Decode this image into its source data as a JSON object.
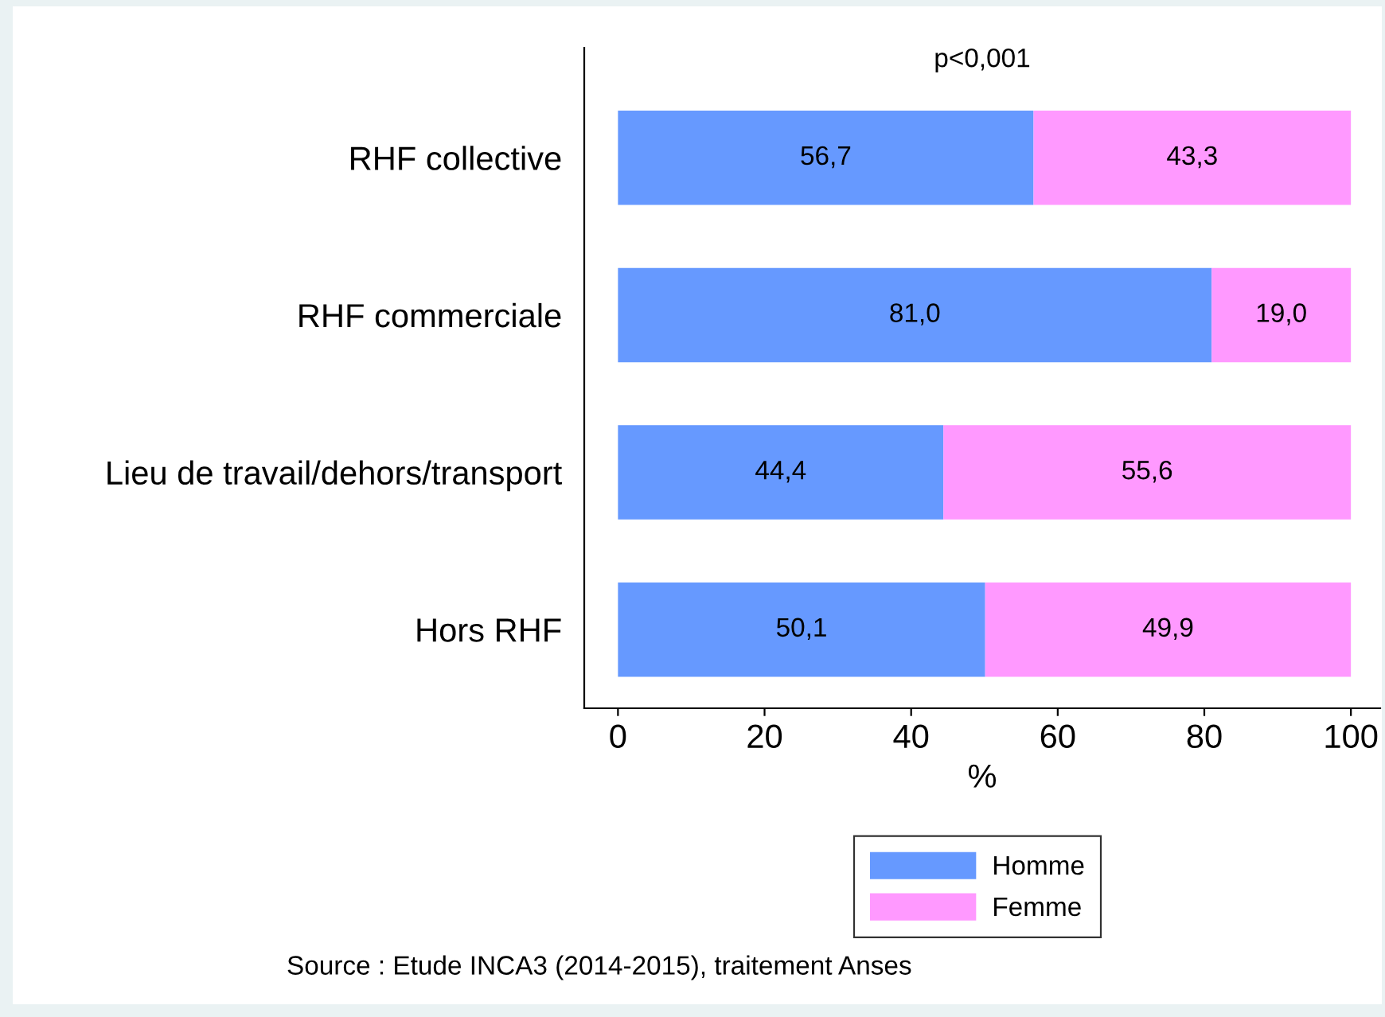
{
  "chart_data": {
    "type": "bar",
    "orientation": "horizontal",
    "stacked": true,
    "categories": [
      "RHF collective",
      "RHF commerciale",
      "Lieu de travail/dehors/transport",
      "Hors RHF"
    ],
    "series": [
      {
        "name": "Homme",
        "color": "#6699ff",
        "values": [
          56.7,
          81.0,
          44.4,
          50.1
        ],
        "value_labels": [
          "56,7",
          "81,0",
          "44,4",
          "50,1"
        ]
      },
      {
        "name": "Femme",
        "color": "#ff99ff",
        "values": [
          43.3,
          19.0,
          55.6,
          49.9
        ],
        "value_labels": [
          "43,3",
          "19,0",
          "55,6",
          "49,9"
        ]
      }
    ],
    "xlabel": "%",
    "xlim": [
      -4.6,
      104
    ],
    "xticks": [
      0,
      20,
      40,
      60,
      80,
      100
    ],
    "annotations": [
      "p<0,001",
      "Source : Etude INCA3 (2014-2015), traitement Anses"
    ],
    "grid": false,
    "legend": "bottom"
  }
}
